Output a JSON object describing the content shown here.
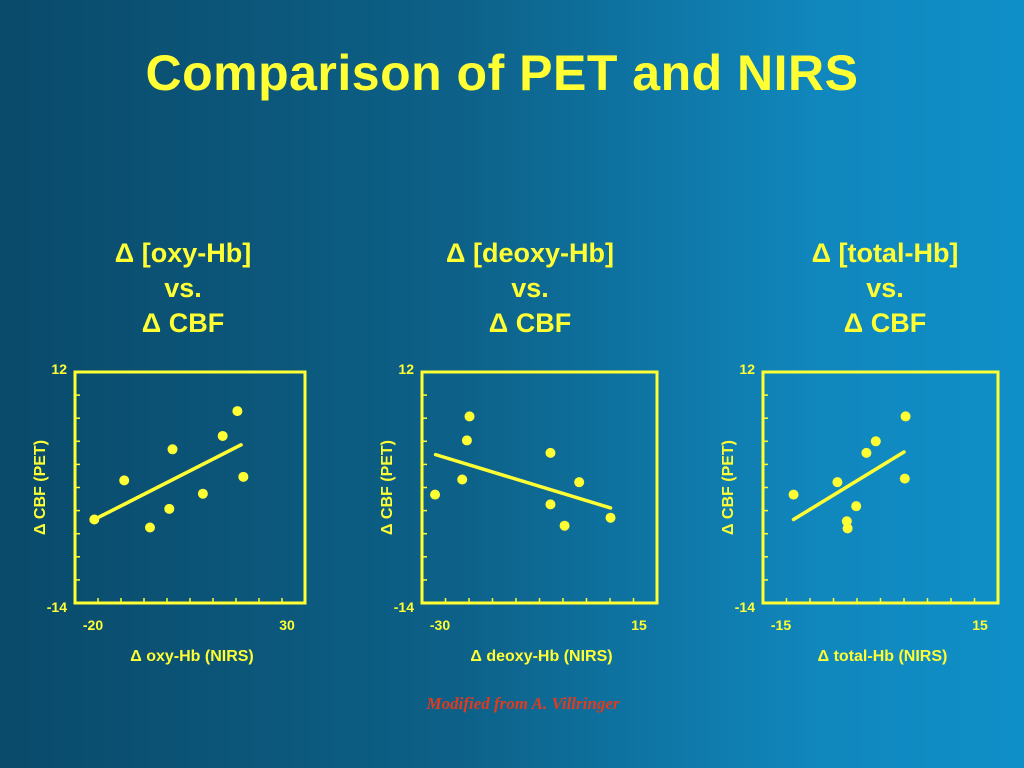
{
  "title": "Comparison of PET and NIRS",
  "credit": "Modified from A. Villringer",
  "colors": {
    "foreground": "#ffff33",
    "credit": "#e03b1f",
    "background_left": "#0a4a6a",
    "background_right": "#0f8fc8"
  },
  "chart_data": [
    {
      "type": "scatter",
      "heading": [
        "Δ [oxy-Hb]",
        "vs.",
        "Δ CBF"
      ],
      "xlabel": "Δ oxy-Hb (NIRS)",
      "ylabel": "Δ CBF (PET)",
      "xlim": [
        -20,
        30
      ],
      "ylim": [
        -14,
        12
      ],
      "xtick_labels": [
        "-20",
        "30"
      ],
      "ytick_labels": [
        "12",
        "-14"
      ],
      "points": [
        {
          "x": -15.8,
          "y": -4.6
        },
        {
          "x": -9.3,
          "y": -0.2
        },
        {
          "x": -3.7,
          "y": -5.5
        },
        {
          "x": 0.5,
          "y": -3.4
        },
        {
          "x": 1.2,
          "y": 3.3
        },
        {
          "x": 7.8,
          "y": -1.7
        },
        {
          "x": 12.1,
          "y": 4.8
        },
        {
          "x": 15.3,
          "y": 7.6
        },
        {
          "x": 16.6,
          "y": 0.2
        }
      ],
      "fit": {
        "x": [
          -15.8,
          16.1
        ],
        "y": [
          -4.6,
          3.8
        ]
      },
      "grid": false
    },
    {
      "type": "scatter",
      "heading": [
        "Δ [deoxy-Hb]",
        "vs.",
        "Δ CBF"
      ],
      "xlabel": "Δ deoxy-Hb (NIRS)",
      "ylabel": "Δ CBF (PET)",
      "xlim": [
        -30,
        15
      ],
      "ylim": [
        -14,
        12
      ],
      "xtick_labels": [
        "-30",
        "15"
      ],
      "ytick_labels": [
        "12",
        "-14"
      ],
      "points": [
        {
          "x": -27.5,
          "y": -1.8
        },
        {
          "x": -22.3,
          "y": -0.1
        },
        {
          "x": -21.4,
          "y": 4.3
        },
        {
          "x": -20.9,
          "y": 7.0
        },
        {
          "x": -5.4,
          "y": 2.9
        },
        {
          "x": -5.4,
          "y": -2.9
        },
        {
          "x": -2.7,
          "y": -5.3
        },
        {
          "x": 0.1,
          "y": -0.4
        },
        {
          "x": 6.1,
          "y": -4.4
        }
      ],
      "fit": {
        "x": [
          -27.4,
          6.1
        ],
        "y": [
          2.7,
          -3.3
        ]
      },
      "grid": false
    },
    {
      "type": "scatter",
      "heading": [
        "Δ [total-Hb]",
        "vs.",
        "Δ CBF"
      ],
      "xlabel": "Δ total-Hb (NIRS)",
      "ylabel": "Δ CBF (PET)",
      "xlim": [
        -15,
        15
      ],
      "ylim": [
        -14,
        12
      ],
      "xtick_labels": [
        "-15",
        "15"
      ],
      "ytick_labels": [
        "12",
        "-14"
      ],
      "points": [
        {
          "x": -11.1,
          "y": -1.8
        },
        {
          "x": -5.5,
          "y": -0.4
        },
        {
          "x": -4.3,
          "y": -4.8
        },
        {
          "x": -4.2,
          "y": -5.6
        },
        {
          "x": -3.1,
          "y": -3.1
        },
        {
          "x": -1.8,
          "y": 2.9
        },
        {
          "x": -0.6,
          "y": 4.2
        },
        {
          "x": 3.1,
          "y": 0.0
        },
        {
          "x": 3.2,
          "y": 7.0
        }
      ],
      "fit": {
        "x": [
          -11.1,
          3.0
        ],
        "y": [
          -4.6,
          3.0
        ]
      },
      "grid": false
    }
  ]
}
